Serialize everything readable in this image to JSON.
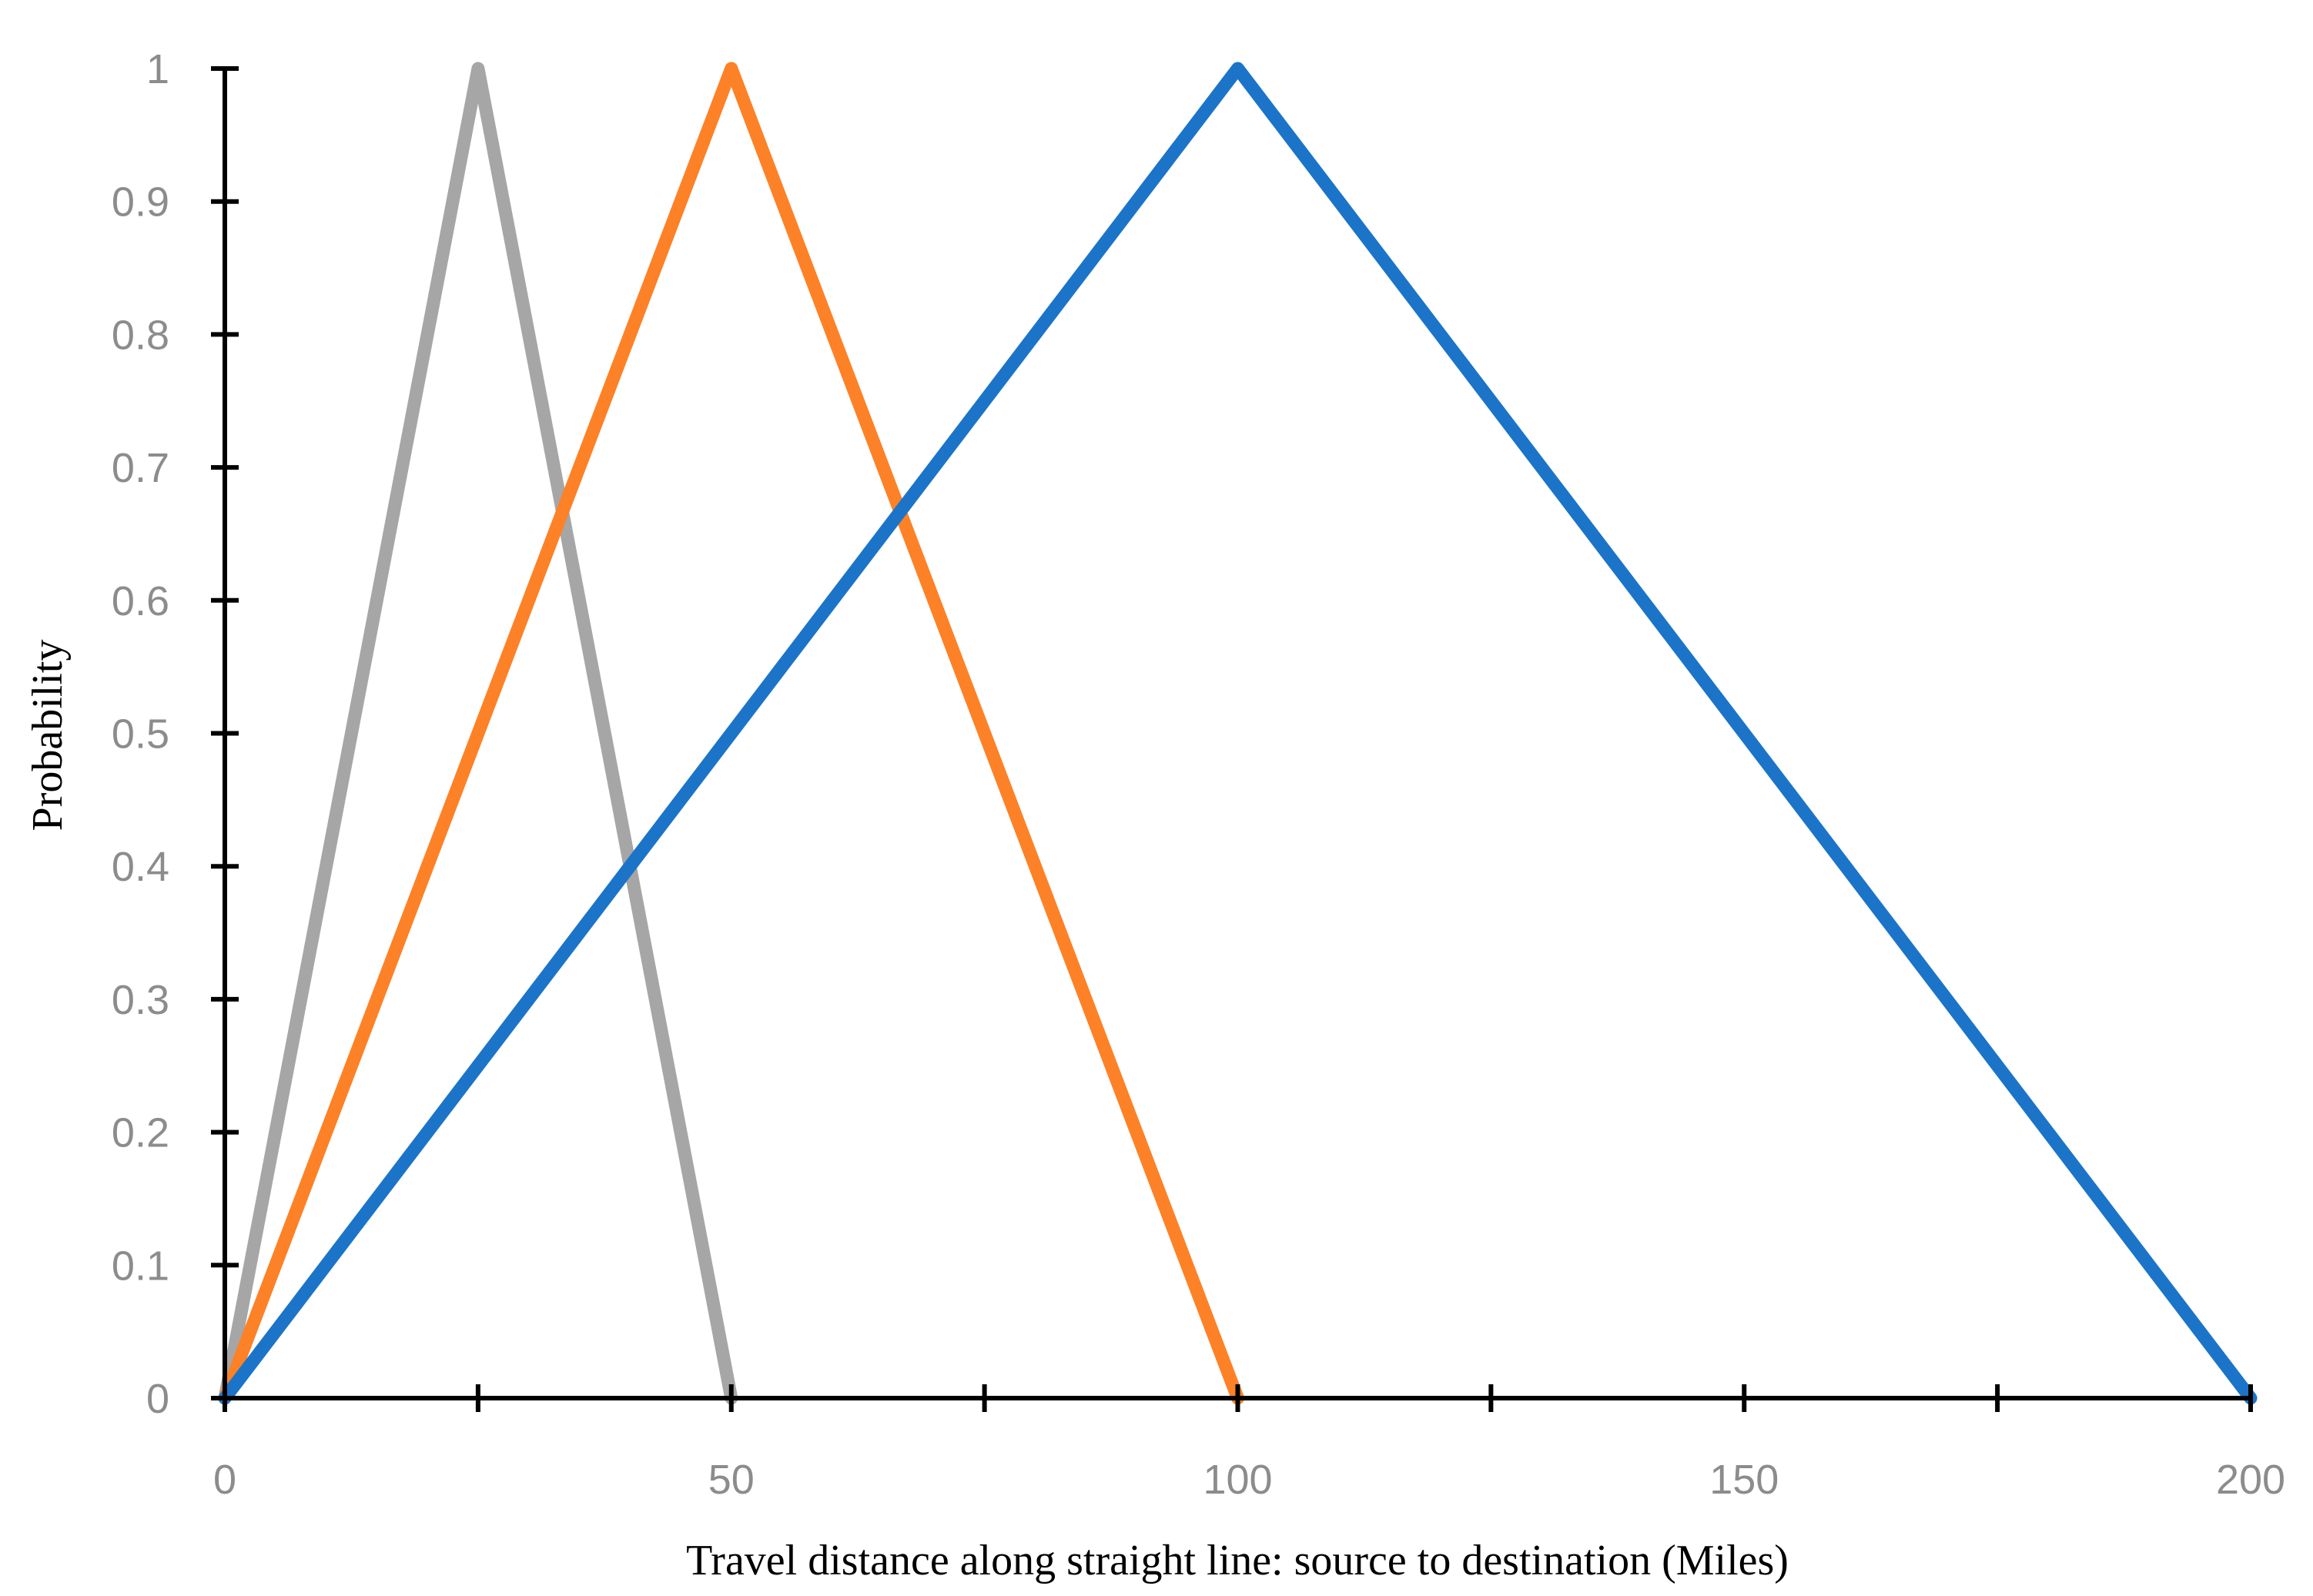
{
  "chart_data": {
    "type": "line",
    "title": "",
    "xlabel": "Travel distance along straight line: source to destination (Miles)",
    "ylabel": "Probability",
    "xlim": [
      0,
      200
    ],
    "ylim": [
      0,
      1
    ],
    "x_ticks": [
      0,
      50,
      100,
      150,
      200
    ],
    "x_tick_labels": [
      "0",
      "50",
      "100",
      "150",
      "200"
    ],
    "x_minor_ticks": [
      25,
      75,
      125,
      175
    ],
    "y_ticks": [
      0,
      0.1,
      0.2,
      0.3,
      0.4,
      0.5,
      0.6,
      0.7,
      0.8,
      0.9,
      1
    ],
    "y_tick_labels": [
      "0",
      "0.1",
      "0.2",
      "0.3",
      "0.4",
      "0.5",
      "0.6",
      "0.7",
      "0.8",
      "0.9",
      "1"
    ],
    "grid": false,
    "legend": "none",
    "series": [
      {
        "color": "#a6a6a6",
        "x": [
          0,
          25,
          50
        ],
        "y": [
          0,
          1,
          0
        ]
      },
      {
        "color": "#fd8127",
        "x": [
          0,
          50,
          100
        ],
        "y": [
          0,
          1,
          0
        ]
      },
      {
        "color": "#1b74c8",
        "x": [
          0,
          100,
          200
        ],
        "y": [
          0,
          1,
          0
        ]
      }
    ]
  }
}
